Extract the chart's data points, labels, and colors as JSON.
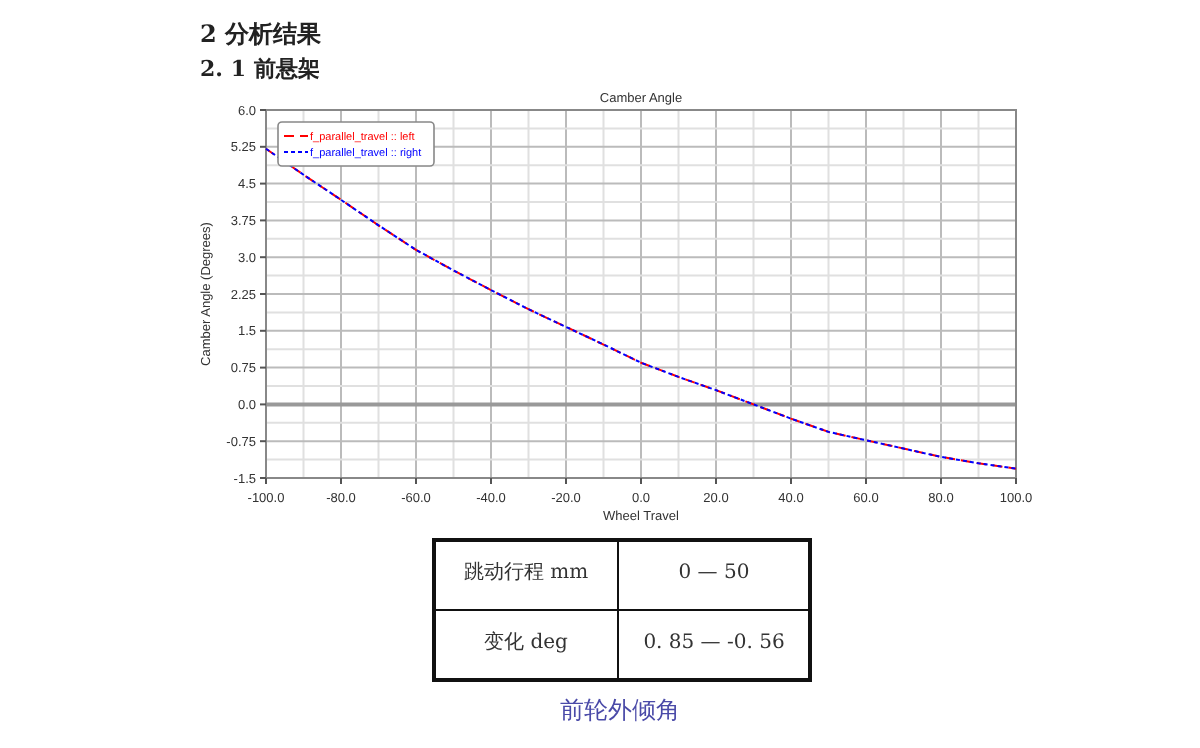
{
  "chart_data": {
    "type": "line",
    "title": "Camber Angle",
    "xlabel": "Wheel Travel",
    "ylabel": "Camber Angle (Degrees)",
    "annotations": [
      "2  分析结果",
      "2. 1 前悬架",
      "跳动行程 mm",
      "0 — 50",
      "变化 deg",
      "0. 85 — -0. 56",
      "前轮外倾角"
    ],
    "x": [
      -100,
      -90,
      -80,
      -70,
      -60,
      -50,
      -40,
      -30,
      -20,
      -10,
      0,
      10,
      20,
      30,
      40,
      50,
      60,
      70,
      80,
      90,
      100
    ],
    "series": [
      {
        "name": "f_parallel_travel :: left",
        "color": "#ff0000",
        "line_style": "dashed",
        "values": [
          5.21,
          4.68,
          4.17,
          3.65,
          3.15,
          2.73,
          2.33,
          1.94,
          1.58,
          1.22,
          0.85,
          0.56,
          0.29,
          0.0,
          -0.29,
          -0.56,
          -0.73,
          -0.9,
          -1.07,
          -1.2,
          -1.31
        ]
      },
      {
        "name": "f_parallel_travel :: right",
        "color": "#0000ff",
        "line_style": "dotted",
        "values": [
          5.21,
          4.68,
          4.17,
          3.65,
          3.15,
          2.73,
          2.33,
          1.94,
          1.58,
          1.22,
          0.85,
          0.56,
          0.29,
          0.0,
          -0.29,
          -0.56,
          -0.73,
          -0.9,
          -1.07,
          -1.2,
          -1.31
        ]
      }
    ],
    "xlim": [
      -100,
      100
    ],
    "ylim": [
      -1.5,
      6
    ],
    "xticks": [
      {
        "value": -100,
        "label": "-100.0"
      },
      {
        "value": -80,
        "label": "-80.0"
      },
      {
        "value": -60,
        "label": "-60.0"
      },
      {
        "value": -40,
        "label": "-40.0"
      },
      {
        "value": -20,
        "label": "-20.0"
      },
      {
        "value": 0,
        "label": "0.0"
      },
      {
        "value": 20,
        "label": "20.0"
      },
      {
        "value": 40,
        "label": "40.0"
      },
      {
        "value": 60,
        "label": "60.0"
      },
      {
        "value": 80,
        "label": "80.0"
      },
      {
        "value": 100,
        "label": "100.0"
      }
    ],
    "yticks": [
      {
        "value": -1.5,
        "label": "-1.5"
      },
      {
        "value": -0.75,
        "label": "-0.75"
      },
      {
        "value": 0,
        "label": "0.0"
      },
      0.75,
      1.5,
      2.25,
      {
        "value": 3,
        "label": "3.0"
      },
      3.75,
      4.5,
      5.25,
      {
        "value": 6,
        "label": "6.0"
      }
    ],
    "grid": true,
    "legend": "top left",
    "marker": "none"
  }
}
